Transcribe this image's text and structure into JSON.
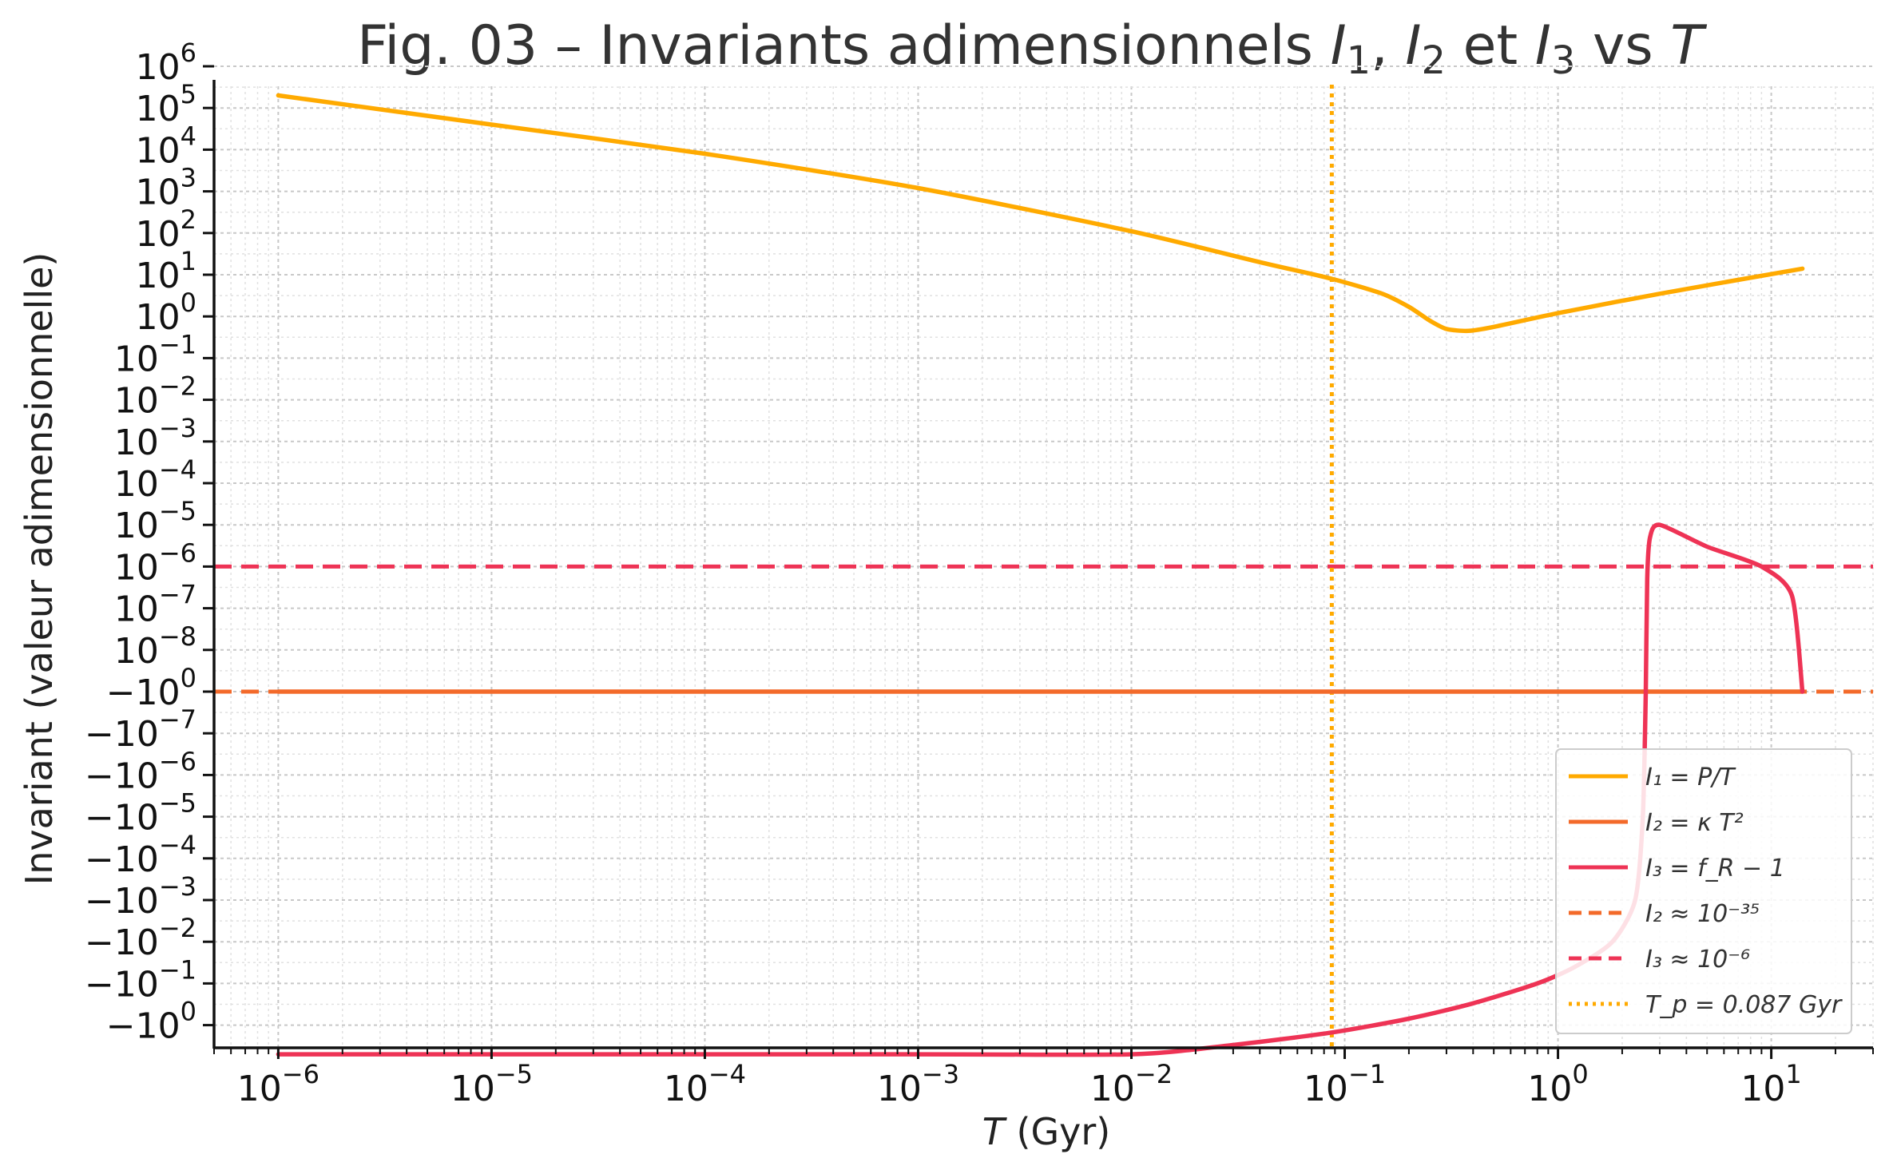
{
  "chart_data": {
    "type": "line",
    "title": "Fig. 03 – Invariants adimensionnels I₁, I₂ et I₃ vs T",
    "xlabel": "T (Gyr)",
    "ylabel": "Invariant (valeur adimensionnelle)",
    "xscale": "log",
    "yscale": "symlog",
    "xlim": [
      5e-07,
      30
    ],
    "x_ticks": [
      {
        "value": 1e-06,
        "mant": "10",
        "exp": "−6"
      },
      {
        "value": 1e-05,
        "mant": "10",
        "exp": "−5"
      },
      {
        "value": 0.0001,
        "mant": "10",
        "exp": "−4"
      },
      {
        "value": 0.001,
        "mant": "10",
        "exp": "−3"
      },
      {
        "value": 0.01,
        "mant": "10",
        "exp": "−2"
      },
      {
        "value": 0.1,
        "mant": "10",
        "exp": "−1"
      },
      {
        "value": 1,
        "mant": "10",
        "exp": "0"
      },
      {
        "value": 10,
        "mant": "10",
        "exp": "1"
      }
    ],
    "y_ticks": [
      {
        "value": 1000000.0,
        "mant": "10",
        "exp": "6"
      },
      {
        "value": 100000.0,
        "mant": "10",
        "exp": "5"
      },
      {
        "value": 10000.0,
        "mant": "10",
        "exp": "4"
      },
      {
        "value": 1000.0,
        "mant": "10",
        "exp": "3"
      },
      {
        "value": 100.0,
        "mant": "10",
        "exp": "2"
      },
      {
        "value": 10,
        "mant": "10",
        "exp": "1"
      },
      {
        "value": 1,
        "mant": "10",
        "exp": "0"
      },
      {
        "value": 0.1,
        "mant": "10",
        "exp": "−1"
      },
      {
        "value": 0.01,
        "mant": "10",
        "exp": "−2"
      },
      {
        "value": 0.001,
        "mant": "10",
        "exp": "−3"
      },
      {
        "value": 0.0001,
        "mant": "10",
        "exp": "−4"
      },
      {
        "value": 1e-05,
        "mant": "10",
        "exp": "−5"
      },
      {
        "value": 1e-06,
        "mant": "10",
        "exp": "−6"
      },
      {
        "value": 1e-07,
        "mant": "10",
        "exp": "−7"
      },
      {
        "value": 1e-08,
        "mant": "10",
        "exp": "−8"
      },
      {
        "value": 0,
        "mant": "−10",
        "exp": "0"
      },
      {
        "value": -1e-07,
        "mant": "−10",
        "exp": "−7"
      },
      {
        "value": -1e-06,
        "mant": "−10",
        "exp": "−6"
      },
      {
        "value": -1e-05,
        "mant": "−10",
        "exp": "−5"
      },
      {
        "value": -0.0001,
        "mant": "−10",
        "exp": "−4"
      },
      {
        "value": -0.001,
        "mant": "−10",
        "exp": "−3"
      },
      {
        "value": -0.01,
        "mant": "−10",
        "exp": "−2"
      },
      {
        "value": -0.1,
        "mant": "−10",
        "exp": "−1"
      },
      {
        "value": -1,
        "mant": "−10",
        "exp": "0"
      }
    ],
    "grid": true,
    "legend_position": "lower right",
    "series": [
      {
        "name": "I₁ = P/T",
        "color": "#FFAA00",
        "style": "solid",
        "x": [
          1e-06,
          1e-05,
          0.0001,
          0.001,
          0.01,
          0.04,
          0.087,
          0.15,
          0.2,
          0.25,
          0.3,
          0.38,
          0.5,
          1,
          3,
          14
        ],
        "y": [
          200000,
          40000,
          8000,
          1200,
          110,
          20,
          8,
          3.5,
          1.7,
          0.8,
          0.5,
          0.45,
          0.56,
          1.2,
          3.5,
          14
        ]
      },
      {
        "name": "I₂ = κ T²",
        "color": "#F36A2A",
        "style": "solid",
        "x": [
          1e-06,
          14
        ],
        "y": [
          1e-35,
          1e-35
        ]
      },
      {
        "name": "I₃ = f_R − 1",
        "color": "#EE3355",
        "style": "solid",
        "x": [
          1e-06,
          0.001,
          0.01,
          0.03,
          0.087,
          0.2,
          0.4,
          0.8,
          1.2,
          1.8,
          2.3,
          2.5,
          2.58,
          2.62,
          2.7,
          3,
          5,
          9,
          12.5,
          14
        ],
        "y": [
          -0.5,
          -0.5,
          -0.5,
          -0.3,
          -0.15,
          -0.07,
          -0.03,
          -0.01,
          -0.004,
          -0.001,
          -0.0001,
          -1e-06,
          0,
          5e-07,
          5e-06,
          1e-05,
          3e-06,
          1e-06,
          2e-07,
          0
        ]
      },
      {
        "name": "I₂ ≈ 10⁻³⁵",
        "color": "#F36A2A",
        "style": "dashed",
        "y_value": 1e-35
      },
      {
        "name": "I₃ ≈ 10⁻⁶",
        "color": "#EE3355",
        "style": "dashed",
        "y_value": 1e-06
      },
      {
        "name": "T_p = 0.087 Gyr",
        "color": "#FFAA00",
        "style": "dotted",
        "x_value": 0.087
      }
    ]
  }
}
